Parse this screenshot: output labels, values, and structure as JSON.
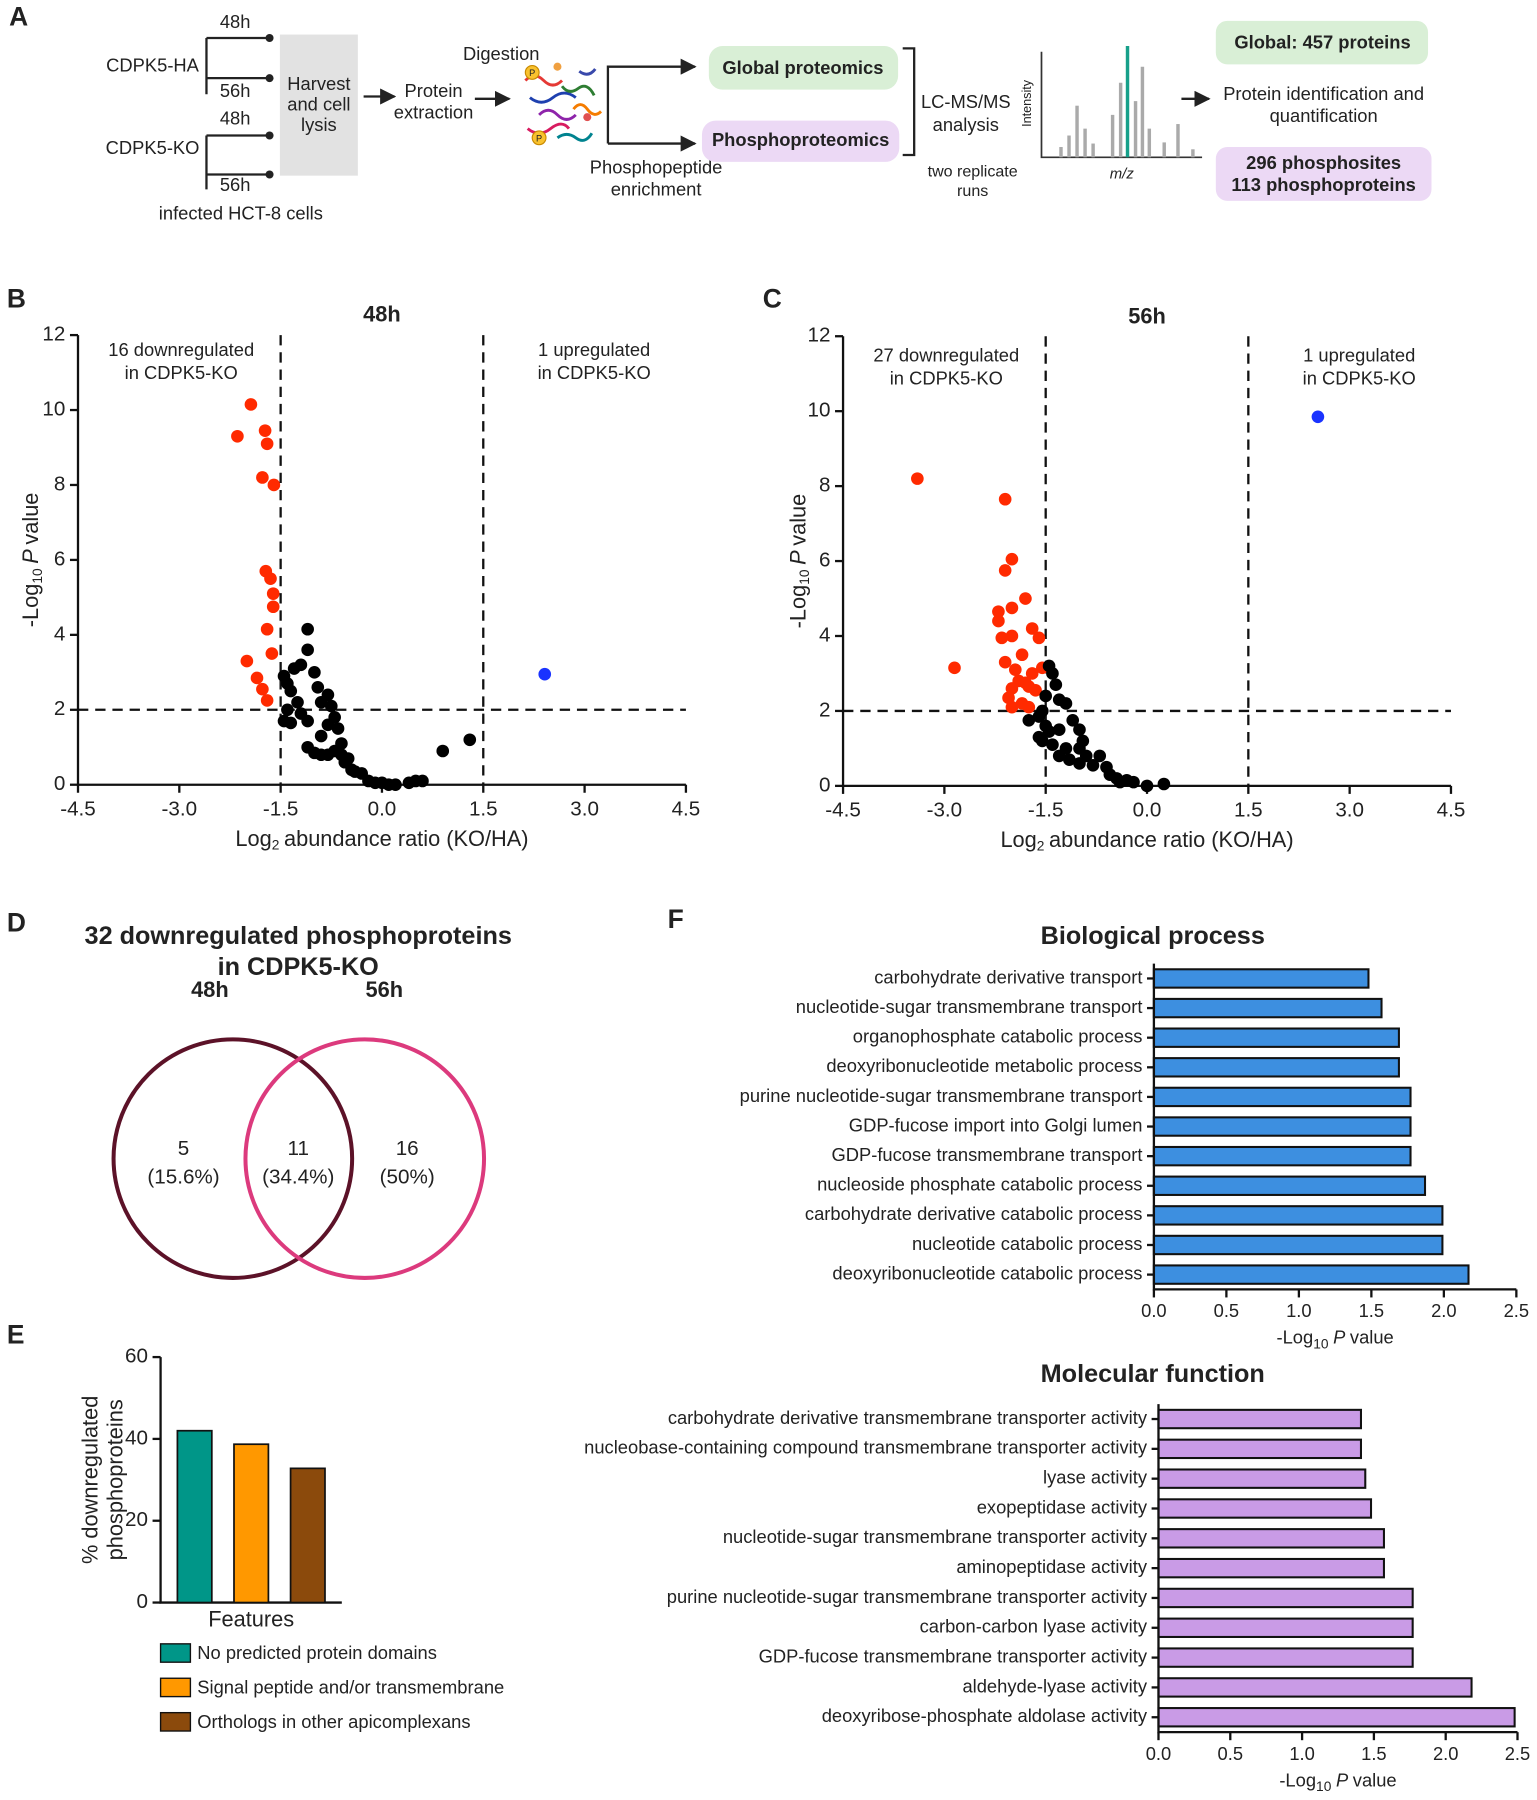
{
  "panel_labels": [
    "A",
    "B",
    "C",
    "D",
    "E",
    "F"
  ],
  "workflow": {
    "strains": [
      "CDPK5-HA",
      "CDPK5-KO"
    ],
    "times": [
      "48h",
      "56h",
      "48h",
      "56h"
    ],
    "cells": "infected HCT-8 cells",
    "harvest": [
      "Harvest",
      "and cell",
      "lysis"
    ],
    "extraction": [
      "Protein",
      "extraction"
    ],
    "digestion": "Digestion",
    "phosphate": "P",
    "enrichment": [
      "Phosphopeptide",
      "enrichment"
    ],
    "global": "Global proteomics",
    "phospho": "Phosphoproteomics",
    "lcms": [
      "LC-MS/MS",
      "analysis"
    ],
    "replicates": [
      "two replicate",
      "runs"
    ],
    "intensity": "Intensity",
    "mz": "m/z",
    "identification": [
      "Protein identification and",
      "quantification"
    ],
    "global_result": "Global: 457 proteins",
    "phospho_result": [
      "296 phosphosites",
      "113 phosphoproteins"
    ]
  },
  "chart_data": [
    {
      "type": "scatter",
      "title": "48h",
      "xlabel": [
        "Log",
        "2",
        "abundance ratio (KO/HA)"
      ],
      "ylabel": [
        "-Log",
        "10",
        "P",
        "value"
      ],
      "xlim": [
        -4.5,
        4.5
      ],
      "ylim": [
        0,
        12
      ],
      "xticks": [
        -4.5,
        {
          "value": -3,
          "label": "-3.0"
        },
        -1.5,
        {
          "value": 0,
          "label": "0.0"
        },
        1.5,
        {
          "value": 3,
          "label": "3.0"
        },
        4.5
      ],
      "yticks": [
        0,
        2,
        4,
        6,
        8,
        10,
        12
      ],
      "thresholds": {
        "x": [
          -1.5,
          1.5
        ],
        "y": 2
      },
      "annotations": [
        {
          "lines": [
            "16 downregulated",
            "in CDPK5-KO"
          ],
          "color": "#ff2a00"
        },
        {
          "lines": [
            "1 upregulated",
            "in CDPK5-KO"
          ],
          "color": "#1a33ff"
        }
      ],
      "series": [
        {
          "color": "#ff2a00",
          "x": [
            -1.94,
            -2.14,
            -1.73,
            -1.7,
            -1.77,
            -1.6,
            -1.72,
            -1.65,
            -1.61,
            -1.61,
            -1.7,
            -1.63,
            -2.0,
            -1.85,
            -1.77,
            -1.7
          ],
          "y": [
            10.15,
            9.3,
            9.45,
            9.1,
            8.2,
            8.0,
            5.7,
            5.5,
            5.1,
            4.75,
            4.15,
            3.5,
            3.3,
            2.85,
            2.55,
            2.25
          ]
        },
        {
          "color": "#1a33ff",
          "x": [
            2.41
          ],
          "y": [
            2.95
          ]
        },
        {
          "color": "#000000",
          "x": [
            -1.45,
            -1.4,
            -1.35,
            -1.3,
            -1.2,
            -1.1,
            -1.1,
            -1.0,
            -0.95,
            -1.25,
            -1.4,
            -1.45,
            -1.35,
            -1.2,
            -1.1,
            -0.9,
            -0.8,
            -0.75,
            -0.7,
            -0.8,
            -0.65,
            -0.9,
            -1.0,
            -0.9,
            -0.8,
            -0.7,
            -0.6,
            -0.55,
            -0.5,
            -0.45,
            -0.4,
            -0.3,
            -0.2,
            -0.1,
            0.0,
            0.1,
            0.2,
            0.4,
            0.5,
            0.6,
            0.9,
            1.3,
            -1.1,
            -0.6
          ],
          "y": [
            2.9,
            2.7,
            2.5,
            3.1,
            3.2,
            4.15,
            3.6,
            3.0,
            2.6,
            2.2,
            2.0,
            1.7,
            1.65,
            1.9,
            1.7,
            2.2,
            2.4,
            2.1,
            1.8,
            1.6,
            1.5,
            1.3,
            0.85,
            0.8,
            0.8,
            0.9,
            0.8,
            0.6,
            0.7,
            0.4,
            0.35,
            0.3,
            0.1,
            0.05,
            0.05,
            0.0,
            0.0,
            0.05,
            0.1,
            0.1,
            0.9,
            1.2,
            1.0,
            1.1
          ]
        }
      ]
    },
    {
      "type": "scatter",
      "title": "56h",
      "xlabel": [
        "Log",
        "2",
        "abundance ratio (KO/HA)"
      ],
      "ylabel": [
        "-Log",
        "10",
        "P",
        "value"
      ],
      "xlim": [
        -4.5,
        4.5
      ],
      "ylim": [
        0,
        12
      ],
      "xticks": [
        -4.5,
        {
          "value": -3,
          "label": "-3.0"
        },
        -1.5,
        {
          "value": 0,
          "label": "0.0"
        },
        1.5,
        {
          "value": 3,
          "label": "3.0"
        },
        4.5
      ],
      "yticks": [
        0,
        2,
        4,
        6,
        8,
        10,
        12
      ],
      "thresholds": {
        "x": [
          -1.5,
          1.5
        ],
        "y": 2
      },
      "annotations": [
        {
          "lines": [
            "27 downregulated",
            "in CDPK5-KO"
          ],
          "color": "#ff2a00"
        },
        {
          "lines": [
            "1 upregulated",
            "in CDPK5-KO"
          ],
          "color": "#1a33ff"
        }
      ],
      "series": [
        {
          "color": "#ff2a00",
          "x": [
            -3.4,
            -2.1,
            -2.0,
            -2.1,
            -2.2,
            -2.2,
            -2.0,
            -1.8,
            -1.7,
            -2.15,
            -2.0,
            -1.85,
            -1.6,
            -2.1,
            -1.95,
            -1.7,
            -1.55,
            -2.85,
            -1.9,
            -1.8,
            -1.75,
            -2.0,
            -1.65,
            -2.05,
            -1.85,
            -2.0,
            -1.75
          ],
          "y": [
            8.2,
            7.65,
            6.05,
            5.75,
            4.65,
            4.4,
            4.75,
            5.0,
            4.2,
            3.95,
            4.0,
            3.5,
            3.95,
            3.3,
            3.1,
            3.0,
            3.15,
            3.15,
            2.8,
            2.75,
            2.65,
            2.6,
            2.55,
            2.35,
            2.2,
            2.1,
            2.1
          ]
        },
        {
          "color": "#1a33ff",
          "x": [
            2.53
          ],
          "y": [
            9.85
          ]
        },
        {
          "color": "#000000",
          "x": [
            -1.45,
            -1.4,
            -1.35,
            -1.5,
            -1.3,
            -1.2,
            -1.55,
            -1.6,
            -1.75,
            -1.5,
            -1.45,
            -1.3,
            -1.1,
            -1.0,
            -0.95,
            -1.2,
            -1.4,
            -1.55,
            -1.3,
            -1.15,
            -1.0,
            -0.9,
            -0.8,
            -0.7,
            -0.6,
            -0.55,
            -0.45,
            -0.4,
            -0.3,
            -0.2,
            0.0,
            0.25,
            -1.0,
            -1.6
          ],
          "y": [
            3.2,
            3.0,
            2.7,
            2.4,
            2.3,
            2.2,
            2.0,
            1.85,
            1.75,
            1.6,
            1.45,
            1.5,
            1.75,
            1.5,
            1.2,
            1.0,
            1.1,
            1.2,
            0.8,
            0.7,
            0.6,
            0.8,
            0.55,
            0.8,
            0.5,
            0.3,
            0.2,
            0.1,
            0.15,
            0.1,
            0.0,
            0.05,
            1.0,
            1.3
          ]
        }
      ]
    },
    {
      "type": "venn",
      "title": [
        "32 downregulated phosphoproteins",
        "in CDPK5-KO"
      ],
      "sets": [
        "48h",
        "56h"
      ],
      "colors": [
        "#5c1228",
        "#dc3a7d"
      ],
      "values": [
        5,
        11,
        16
      ],
      "percent_labels": [
        "(15.6%)",
        "(34.4%)",
        "(50%)"
      ]
    },
    {
      "type": "bar",
      "xlabel": "Features",
      "ylabel": [
        "% downregulated",
        "phosphoproteins"
      ],
      "ylim": [
        0,
        60
      ],
      "yticks": [
        0,
        20,
        40,
        60
      ],
      "series": [
        {
          "name": "No predicted protein domains",
          "color": "#009688",
          "values": [
            42
          ]
        },
        {
          "name": "Signal peptide and/or transmembrane",
          "color": "#ff9800",
          "values": [
            38.7
          ]
        },
        {
          "name": "Orthologs in other apicomplexans",
          "color": "#8b4a0c",
          "values": [
            32.8
          ]
        }
      ]
    },
    {
      "type": "barh",
      "title": "Biological process",
      "color": "#3d8fe0",
      "xlabel": [
        "-Log",
        "10",
        "P",
        "value"
      ],
      "xlim": [
        0,
        2.5
      ],
      "xticks": [
        {
          "value": 0,
          "label": "0.0"
        },
        0.5,
        {
          "value": 1,
          "label": "1.0"
        },
        1.5,
        {
          "value": 2,
          "label": "2.0"
        },
        2.5
      ],
      "categories": [
        "carbohydrate derivative transport",
        "nucleotide-sugar transmembrane transport",
        "organophosphate catabolic process",
        "deoxyribonucleotide metabolic process",
        "purine nucleotide-sugar transmembrane transport",
        "GDP-fucose import into Golgi lumen",
        "GDP-fucose transmembrane transport",
        "nucleoside phosphate catabolic process",
        "carbohydrate derivative catabolic process",
        "nucleotide catabolic process",
        "deoxyribonucleotide catabolic process"
      ],
      "values": [
        1.48,
        1.57,
        1.69,
        1.69,
        1.77,
        1.77,
        1.77,
        1.87,
        1.99,
        1.99,
        2.17
      ]
    },
    {
      "type": "barh",
      "title": "Molecular function",
      "color": "#c99be6",
      "xlabel": [
        "-Log",
        "10",
        "P",
        "value"
      ],
      "xlim": [
        0,
        2.5
      ],
      "xticks": [
        {
          "value": 0,
          "label": "0.0"
        },
        0.5,
        {
          "value": 1,
          "label": "1.0"
        },
        1.5,
        {
          "value": 2,
          "label": "2.0"
        },
        2.5
      ],
      "categories": [
        "carbohydrate derivative transmembrane transporter activity",
        "nucleobase-containing compound transmembrane transporter activity",
        "lyase activity",
        "exopeptidase activity",
        "nucleotide-sugar transmembrane transporter activity",
        "aminopeptidase activity",
        "purine nucleotide-sugar transmembrane transporter activity",
        "carbon-carbon lyase activity",
        "GDP-fucose transmembrane transporter activity",
        "aldehyde-lyase activity",
        "deoxyribose-phosphate aldolase activity"
      ],
      "values": [
        1.41,
        1.41,
        1.44,
        1.48,
        1.57,
        1.57,
        1.77,
        1.77,
        1.77,
        2.18,
        2.48
      ]
    }
  ]
}
